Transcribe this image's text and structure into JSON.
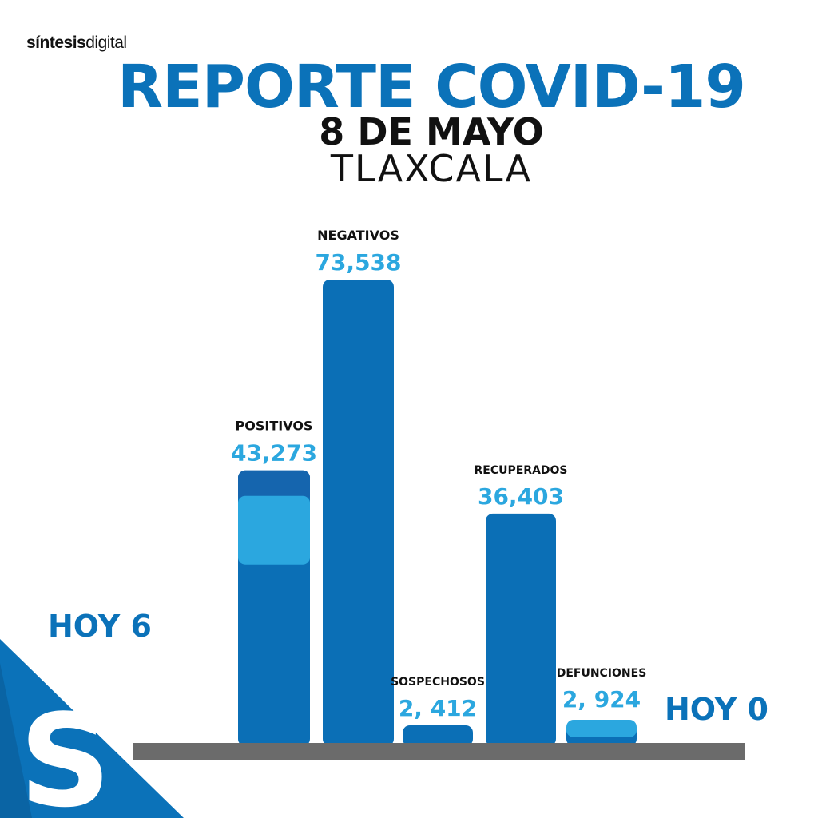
{
  "brand": {
    "bold": "síntesis",
    "light": "digital"
  },
  "header": {
    "title": "REPORTE COVID-19",
    "date": "8 DE MAYO",
    "place": "TLAXCALA"
  },
  "badges": {
    "positivos_today": "HOY 6",
    "defunciones_today": "HOY 0"
  },
  "logo": {
    "letter": "S"
  },
  "colors": {
    "bar": "#0b6fb6",
    "bar_top": "#1565ae",
    "highlight": "#2ba7df",
    "value_text": "#2ba7df",
    "title": "#0b72b9",
    "baseline": "#6b6b6b",
    "corner": "#0b72b9"
  },
  "chart_data": {
    "type": "bar",
    "title": "REPORTE COVID-19",
    "categories": [
      "POSITIVOS",
      "NEGATIVOS",
      "SOSPECHOSOS",
      "RECUPERADOS",
      "DEFUNCIONES"
    ],
    "values": [
      43273,
      73538,
      2412,
      36403,
      2924
    ],
    "value_labels": [
      "43,273",
      "73,538",
      "2, 412",
      "36,403",
      "2, 924"
    ],
    "today_values": [
      6,
      null,
      null,
      null,
      0
    ],
    "grid": false,
    "legend": "none"
  }
}
